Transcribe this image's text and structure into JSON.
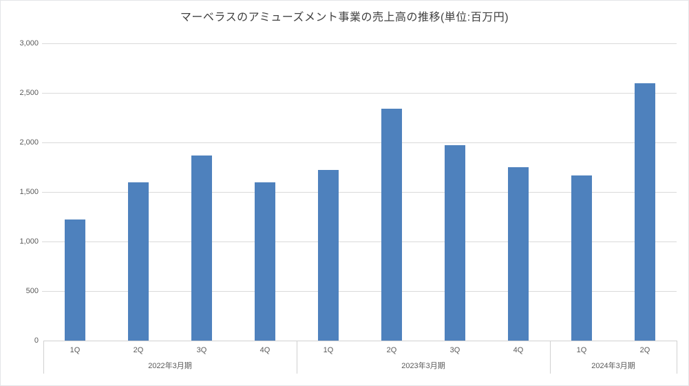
{
  "chart_data": {
    "type": "bar",
    "title": "マーベラスのアミューズメント事業の売上高の推移(単位:百万円)",
    "categories": [
      "1Q",
      "2Q",
      "3Q",
      "4Q",
      "1Q",
      "2Q",
      "3Q",
      "4Q",
      "1Q",
      "2Q"
    ],
    "groups": [
      {
        "label": "2022年3月期",
        "span": 4
      },
      {
        "label": "2023年3月期",
        "span": 4
      },
      {
        "label": "2024年3月期",
        "span": 2
      }
    ],
    "values": [
      1220,
      1600,
      1870,
      1595,
      1725,
      2340,
      1975,
      1750,
      1670,
      2600
    ],
    "ylim": [
      0,
      3000
    ],
    "y_tick_step": 500,
    "y_tick_labels": [
      "0",
      "500",
      "1,000",
      "1,500",
      "2,000",
      "2,500",
      "3,000"
    ],
    "xlabel": "",
    "ylabel": "",
    "grid": true,
    "legend": "none",
    "bar_color": "#4e81bd",
    "gridline_color": "#d9d9d9",
    "axis_line_color": "#d0d0d0",
    "tick_label_color": "#595959",
    "title_color": "#404040"
  }
}
